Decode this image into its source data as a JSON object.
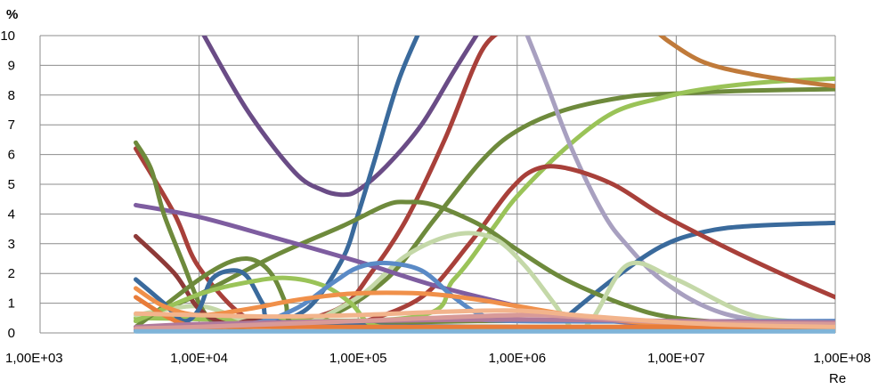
{
  "chart_data": {
    "type": "line",
    "ylabel": "%",
    "xlabel": "Re",
    "x_scale": "log",
    "xlim": [
      1000,
      100000000
    ],
    "ylim": [
      0,
      10
    ],
    "grid": true,
    "legend": "none",
    "x_ticks": [
      1000,
      10000,
      100000,
      1000000,
      10000000,
      100000000
    ],
    "x_tick_labels": [
      "1,00E+03",
      "1,00E+04",
      "1,00E+05",
      "1,00E+06",
      "1,00E+07",
      "1,00E+08"
    ],
    "y_ticks": [
      0,
      1,
      2,
      3,
      4,
      5,
      6,
      7,
      8,
      9,
      10
    ],
    "y_tick_labels": [
      "0",
      "1",
      "2",
      "3",
      "4",
      "5",
      "6",
      "7",
      "8",
      "9",
      "10"
    ],
    "series": [
      {
        "color": "#6A4C86",
        "x": [
          10000,
          20000,
          40000,
          60000,
          80000,
          100000,
          150000,
          250000,
          400000,
          600000
        ],
        "y": [
          10.3,
          7.5,
          5.4,
          4.8,
          4.65,
          4.8,
          5.6,
          7.0,
          8.8,
          10.3
        ]
      },
      {
        "color": "#3A6A9C",
        "x": [
          30000,
          50000,
          80000,
          100000,
          130000,
          180000,
          250000
        ],
        "y": [
          0.3,
          0.9,
          2.5,
          4.0,
          6.0,
          8.5,
          10.3
        ]
      },
      {
        "color": "#A8403A",
        "x": [
          4000,
          7000,
          10000,
          20000,
          40000,
          80000,
          120000,
          200000,
          350000,
          600000,
          900000
        ],
        "y": [
          6.2,
          4.0,
          2.2,
          0.5,
          0.4,
          0.9,
          2.0,
          3.8,
          6.5,
          9.5,
          10.3
        ]
      },
      {
        "color": "#6E8A3C",
        "x": [
          5000,
          20000,
          60000,
          150000,
          300000,
          600000,
          1000000,
          2000000,
          5000000,
          10000000,
          30000000,
          100000000
        ],
        "y": [
          0.2,
          0.3,
          0.5,
          1.8,
          3.8,
          5.8,
          6.8,
          7.5,
          7.95,
          8.05,
          8.15,
          8.2
        ]
      },
      {
        "color": "#9AC358",
        "x": [
          4000,
          200000,
          400000,
          700000,
          1000000,
          2000000,
          4000000,
          8000000,
          15000000,
          40000000,
          100000000
        ],
        "y": [
          0.5,
          0.5,
          1.8,
          3.5,
          4.6,
          6.2,
          7.4,
          7.9,
          8.2,
          8.45,
          8.55
        ]
      },
      {
        "color": "#C07A3A",
        "x": [
          7000000,
          9000000,
          15000000,
          30000000,
          60000000,
          100000000
        ],
        "y": [
          10.3,
          9.8,
          9.1,
          8.7,
          8.45,
          8.3
        ]
      },
      {
        "color": "#A8A0C0",
        "x": [
          1100000,
          1500000,
          2200000,
          3500000,
          5000000,
          8000000,
          15000000,
          30000000,
          100000000
        ],
        "y": [
          10.3,
          8.5,
          6.2,
          4.0,
          2.9,
          1.8,
          0.9,
          0.45,
          0.2
        ]
      },
      {
        "color": "#3A6A9C",
        "x": [
          2000000,
          4000000,
          8000000,
          15000000,
          30000000,
          100000000
        ],
        "y": [
          0.5,
          1.8,
          2.9,
          3.4,
          3.6,
          3.7
        ]
      },
      {
        "color": "#A8403A",
        "x": [
          100000,
          250000,
          500000,
          900000,
          1300000,
          2000000,
          4000000,
          8000000,
          20000000,
          50000000,
          100000000
        ],
        "y": [
          0.3,
          1.2,
          3.0,
          4.8,
          5.5,
          5.55,
          5.0,
          4.0,
          2.9,
          1.9,
          1.2
        ]
      },
      {
        "color": "#6E8A3C",
        "x": [
          4000,
          10000,
          30000,
          80000,
          150000,
          200000,
          300000,
          600000,
          1000000,
          2000000,
          5000000,
          10000000,
          30000000,
          100000000
        ],
        "y": [
          0.4,
          1.3,
          2.6,
          3.6,
          4.3,
          4.4,
          4.3,
          3.6,
          2.8,
          1.8,
          0.9,
          0.5,
          0.3,
          0.2
        ]
      },
      {
        "color": "#C4D8A8",
        "x": [
          4000,
          10000,
          20000,
          40000,
          100000,
          200000,
          400000,
          700000,
          1100000,
          1700000,
          2300000,
          3000000,
          5000000,
          10000000,
          30000000,
          100000000
        ],
        "y": [
          0.6,
          0.9,
          0.4,
          0.2,
          1.2,
          2.6,
          3.3,
          3.2,
          2.3,
          1.0,
          0.1,
          0.5,
          2.3,
          1.8,
          0.6,
          0.3
        ]
      },
      {
        "color": "#7E5DA0",
        "x": [
          4000,
          10000,
          30000,
          100000,
          300000,
          1000000,
          2000000,
          5000000,
          10000000,
          30000000,
          100000000
        ],
        "y": [
          4.3,
          3.9,
          3.2,
          2.4,
          1.6,
          0.9,
          0.55,
          0.35,
          0.25,
          0.2,
          0.15
        ]
      },
      {
        "color": "#6E8A3C",
        "x": [
          4000,
          5000,
          6000,
          8000,
          10000,
          12000,
          15000,
          20000,
          30000,
          60000,
          150000,
          600000,
          3000000,
          100000000
        ],
        "y": [
          6.4,
          5.5,
          4.0,
          2.3,
          1.0,
          0.4,
          0.2,
          0.2,
          0.25,
          0.3,
          0.35,
          0.4,
          0.4,
          0.35
        ]
      },
      {
        "color": "#8E3A38",
        "x": [
          4000,
          7000,
          10000,
          15000,
          20000,
          25000,
          30000,
          100000,
          1000000,
          100000000
        ],
        "y": [
          3.25,
          2.0,
          0.8,
          0.3,
          0.4,
          0.4,
          0.3,
          0.2,
          0.2,
          0.1
        ]
      },
      {
        "color": "#6E8A3C",
        "x": [
          4000,
          6000,
          10000,
          15000,
          20000,
          25000,
          30000,
          35000,
          40000,
          100000,
          1000000
        ],
        "y": [
          0.2,
          0.9,
          1.8,
          2.35,
          2.5,
          2.3,
          1.8,
          1.0,
          0.3,
          0.2,
          0.2
        ]
      },
      {
        "color": "#3A6A9C",
        "x": [
          4000,
          6000,
          8000,
          10000,
          12000,
          16000,
          20000,
          25000,
          30000,
          100000,
          1000000
        ],
        "y": [
          1.8,
          1.0,
          0.4,
          0.8,
          1.8,
          2.1,
          1.9,
          1.0,
          0.4,
          0.25,
          0.2
        ]
      },
      {
        "color": "#9AC358",
        "x": [
          4000,
          10000,
          20000,
          35000,
          60000,
          90000,
          120000,
          200000,
          1000000,
          100000000
        ],
        "y": [
          0.4,
          1.3,
          1.7,
          1.85,
          1.6,
          1.0,
          0.3,
          0.2,
          0.2,
          0.2
        ]
      },
      {
        "color": "#5A8AC6",
        "x": [
          4000,
          20000,
          40000,
          70000,
          100000,
          150000,
          250000,
          400000,
          600000,
          1000000,
          100000000
        ],
        "y": [
          0.1,
          0.3,
          0.8,
          1.7,
          2.2,
          2.35,
          2.1,
          1.2,
          0.6,
          0.4,
          0.4
        ]
      },
      {
        "color": "#F0904A",
        "x": [
          4000,
          6000,
          10000,
          20000,
          40000,
          80000,
          150000,
          300000,
          600000,
          1000000,
          3000000,
          10000000,
          100000000
        ],
        "y": [
          1.5,
          0.9,
          0.6,
          0.8,
          1.1,
          1.3,
          1.35,
          1.3,
          1.1,
          0.9,
          0.5,
          0.3,
          0.2
        ]
      },
      {
        "color": "#E87C3A",
        "x": [
          4000,
          6000,
          8000,
          10000,
          20000,
          100000,
          1000000,
          100000000
        ],
        "y": [
          1.2,
          0.6,
          0.3,
          0.2,
          0.2,
          0.2,
          0.2,
          0.2
        ]
      },
      {
        "color": "#B07A9C",
        "x": [
          4000,
          10000,
          100000,
          1000000,
          10000000,
          100000000
        ],
        "y": [
          0.2,
          0.3,
          0.4,
          0.45,
          0.4,
          0.35
        ]
      },
      {
        "color": "#D89A98",
        "x": [
          4000,
          10000,
          100000,
          1000000,
          3000000,
          10000000,
          100000000
        ],
        "y": [
          0.15,
          0.2,
          0.4,
          0.6,
          0.5,
          0.35,
          0.3
        ]
      },
      {
        "color": "#F2B48C",
        "x": [
          4000,
          10000,
          30000,
          100000,
          300000,
          1000000,
          3000000,
          10000000,
          30000000,
          100000000
        ],
        "y": [
          0.65,
          0.6,
          0.55,
          0.6,
          0.7,
          0.75,
          0.55,
          0.35,
          0.25,
          0.2
        ]
      },
      {
        "color": "#7FB4D8",
        "x": [
          4000,
          10000,
          100000,
          1000000,
          10000000,
          100000000
        ],
        "y": [
          0.05,
          0.05,
          0.05,
          0.05,
          0.05,
          0.05
        ]
      }
    ]
  }
}
